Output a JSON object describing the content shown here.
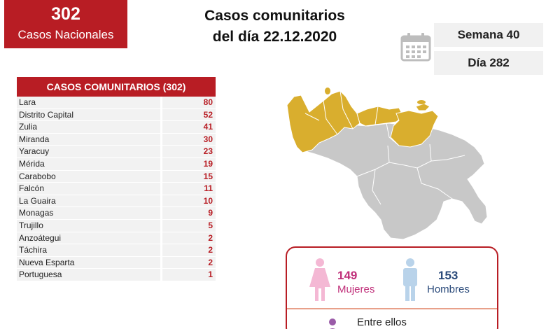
{
  "national": {
    "count": "302",
    "label": "Casos Nacionales"
  },
  "title": {
    "line1": "Casos comunitarios",
    "line2": "del día 22.12.2020"
  },
  "week_label": "Semana 40",
  "day_label": "Día 282",
  "table": {
    "header": "CASOS COMUNITARIOS (302)",
    "rows": [
      {
        "state": "Lara",
        "value": "80"
      },
      {
        "state": "Distrito Capital",
        "value": "52"
      },
      {
        "state": "Zulia",
        "value": "41"
      },
      {
        "state": "Miranda",
        "value": "30"
      },
      {
        "state": "Yaracuy",
        "value": "23"
      },
      {
        "state": "Mérida",
        "value": "19"
      },
      {
        "state": "Carabobo",
        "value": "15"
      },
      {
        "state": "Falcón",
        "value": "11"
      },
      {
        "state": "La Guaira",
        "value": "10"
      },
      {
        "state": "Monagas",
        "value": "9"
      },
      {
        "state": "Trujillo",
        "value": "5"
      },
      {
        "state": "Anzoátegui",
        "value": "2"
      },
      {
        "state": "Táchira",
        "value": "2"
      },
      {
        "state": "Nueva Esparta",
        "value": "2"
      },
      {
        "state": "Portuguesa",
        "value": "1"
      }
    ]
  },
  "gender": {
    "women_count": "149",
    "women_label": "Mujeres",
    "men_count": "153",
    "men_label": "Hombres",
    "footer": "Entre ellos"
  },
  "colors": {
    "brand_red": "#b81d24",
    "map_highlight": "#d9ae2e",
    "map_base": "#c8c8c8",
    "women_pink": "#f4b8d4",
    "men_blue": "#b9d3ea"
  },
  "icons": [
    "calendar-icon",
    "woman-icon",
    "man-icon",
    "person-icon"
  ]
}
